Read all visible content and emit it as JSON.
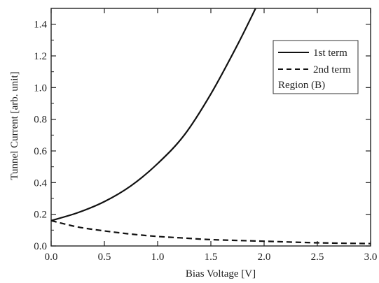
{
  "chart_data": {
    "type": "line",
    "xlabel": "Bias Voltage [V]",
    "ylabel": "Tunnel Current [arb. unit]",
    "xlim": [
      0.0,
      3.0
    ],
    "ylim": [
      0.0,
      1.5
    ],
    "xticks": [
      0.0,
      0.5,
      1.0,
      1.5,
      2.0,
      2.5,
      3.0
    ],
    "xtick_labels": [
      "0.0",
      "0.5",
      "1.0",
      "1.5",
      "2.0",
      "2.5",
      "3.0"
    ],
    "yticks": [
      0.0,
      0.2,
      0.4,
      0.6,
      0.8,
      1.0,
      1.2,
      1.4
    ],
    "ytick_labels": [
      "0.0",
      "0.2",
      "0.4",
      "0.6",
      "0.8",
      "1.0",
      "1.2",
      "1.4"
    ],
    "grid": false,
    "legend_position": "top-right",
    "annotation": "Region (B)",
    "series": [
      {
        "name": "1st term",
        "style": "solid",
        "color": "#111111",
        "x": [
          0.0,
          0.25,
          0.5,
          0.75,
          1.0,
          1.25,
          1.5,
          1.75,
          1.92
        ],
        "y": [
          0.16,
          0.21,
          0.28,
          0.38,
          0.52,
          0.7,
          0.96,
          1.27,
          1.5
        ]
      },
      {
        "name": "2nd term",
        "style": "dashed",
        "color": "#111111",
        "x": [
          0.0,
          0.25,
          0.5,
          0.75,
          1.0,
          1.25,
          1.5,
          2.0,
          2.5,
          3.0
        ],
        "y": [
          0.16,
          0.12,
          0.095,
          0.075,
          0.06,
          0.05,
          0.04,
          0.03,
          0.02,
          0.015
        ]
      }
    ]
  }
}
